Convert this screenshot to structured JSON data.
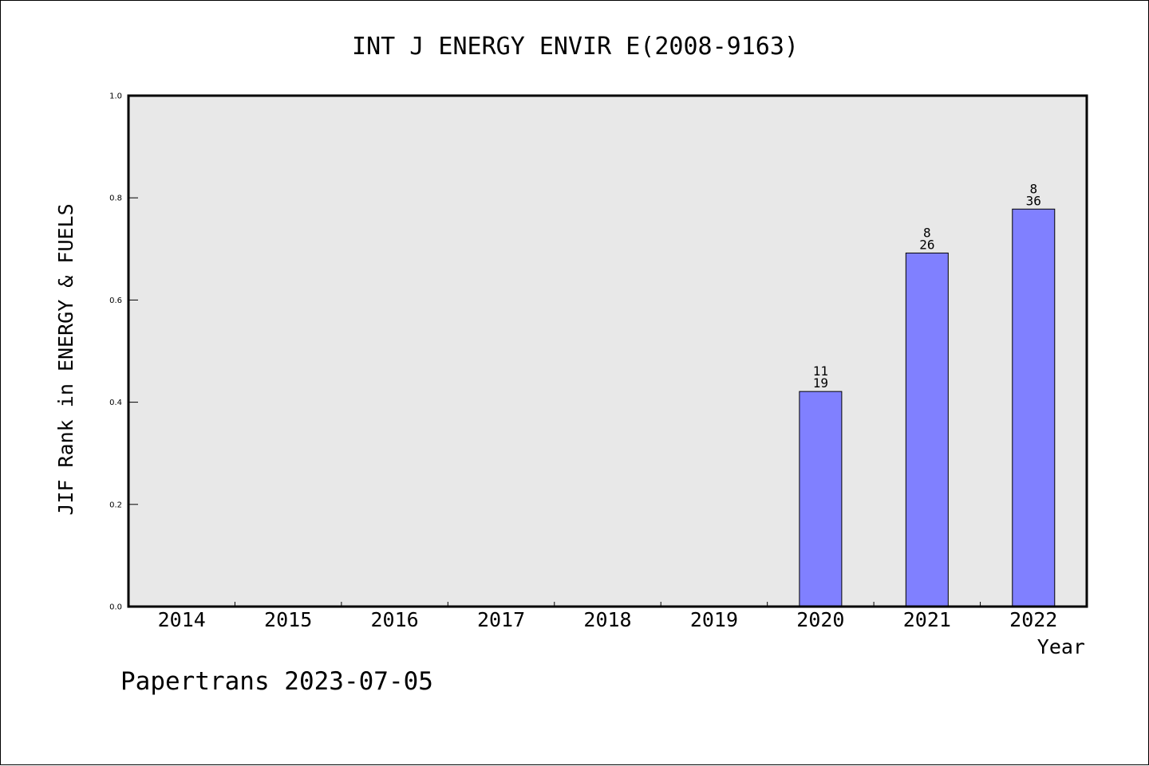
{
  "chart_data": {
    "type": "bar",
    "title": "INT J ENERGY ENVIR E(2008-9163)",
    "xlabel": "Year",
    "ylabel": "JIF Rank in ENERGY & FUELS",
    "ylim": [
      0,
      1.0
    ],
    "yticks": [
      "0.0",
      "0.2",
      "0.4",
      "0.6",
      "0.8",
      "1.0"
    ],
    "categories": [
      "2014",
      "2015",
      "2016",
      "2017",
      "2018",
      "2019",
      "2020",
      "2021",
      "2022"
    ],
    "values": [
      null,
      null,
      null,
      null,
      null,
      null,
      0.421,
      0.692,
      0.778
    ],
    "bar_labels": [
      null,
      null,
      null,
      null,
      null,
      null,
      {
        "top": "11",
        "bottom": "19"
      },
      {
        "top": "8",
        "bottom": "26"
      },
      {
        "top": "8",
        "bottom": "36"
      }
    ],
    "grid": false,
    "colors": {
      "bar": "#8080ff",
      "plot_bg": "#e8e8e8"
    }
  },
  "footer": "Papertrans 2023-07-05"
}
